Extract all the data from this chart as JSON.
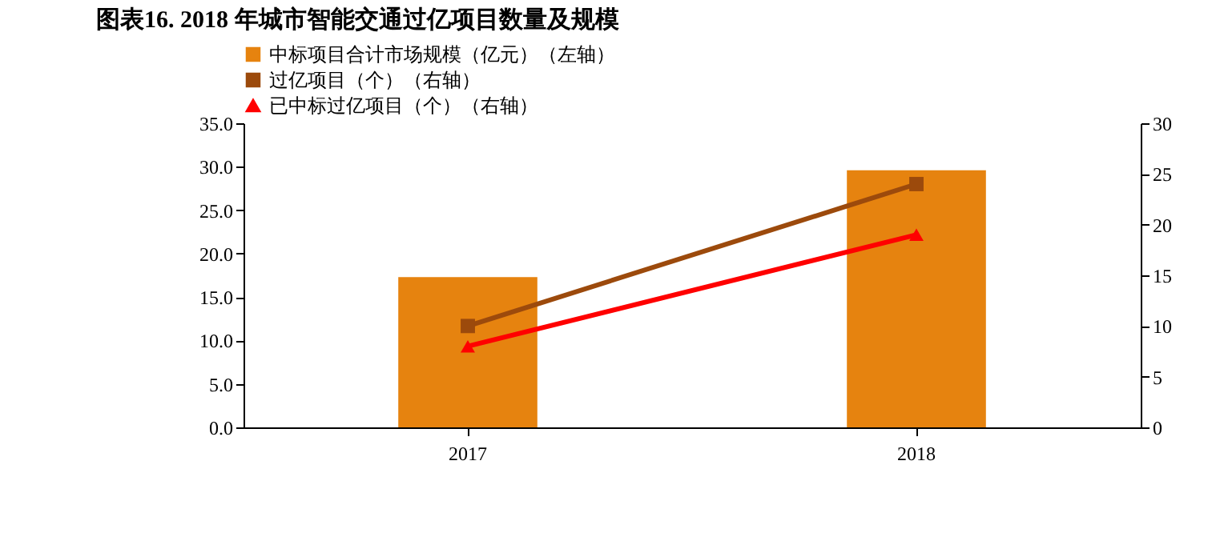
{
  "chart_data": {
    "type": "bar",
    "title": "图表16.  2018 年城市智能交通过亿项目数量及规模",
    "categories": [
      "2017",
      "2018"
    ],
    "series": [
      {
        "name": "中标项目合计市场规模（亿元）（左轴）",
        "color": "#e6830f",
        "values": [
          17.3,
          29.6
        ]
      },
      {
        "name": "过亿项目（个）（右轴）",
        "type": "line",
        "axis": "y2",
        "color": "#9c4a0c",
        "marker": "square",
        "values": [
          10,
          24
        ]
      },
      {
        "name": "已中标过亿项目（个）（右轴）",
        "type": "line",
        "axis": "y2",
        "color": "#ff0000",
        "marker": "triangle",
        "values": [
          8,
          19
        ]
      }
    ],
    "ylim": [
      0,
      35
    ],
    "yticks": [
      {
        "value": 0,
        "label": "0.0"
      },
      {
        "value": 5,
        "label": "5.0"
      },
      {
        "value": 10,
        "label": "10.0"
      },
      {
        "value": 15,
        "label": "15.0"
      },
      {
        "value": 20,
        "label": "20.0"
      },
      {
        "value": 25,
        "label": "25.0"
      },
      {
        "value": 30,
        "label": "30.0"
      },
      {
        "value": 35,
        "label": "35.0"
      }
    ],
    "y2lim": [
      0,
      30
    ],
    "y2ticks": [
      0,
      5,
      10,
      15,
      20,
      25,
      30
    ],
    "grid": false,
    "legend": "top"
  }
}
